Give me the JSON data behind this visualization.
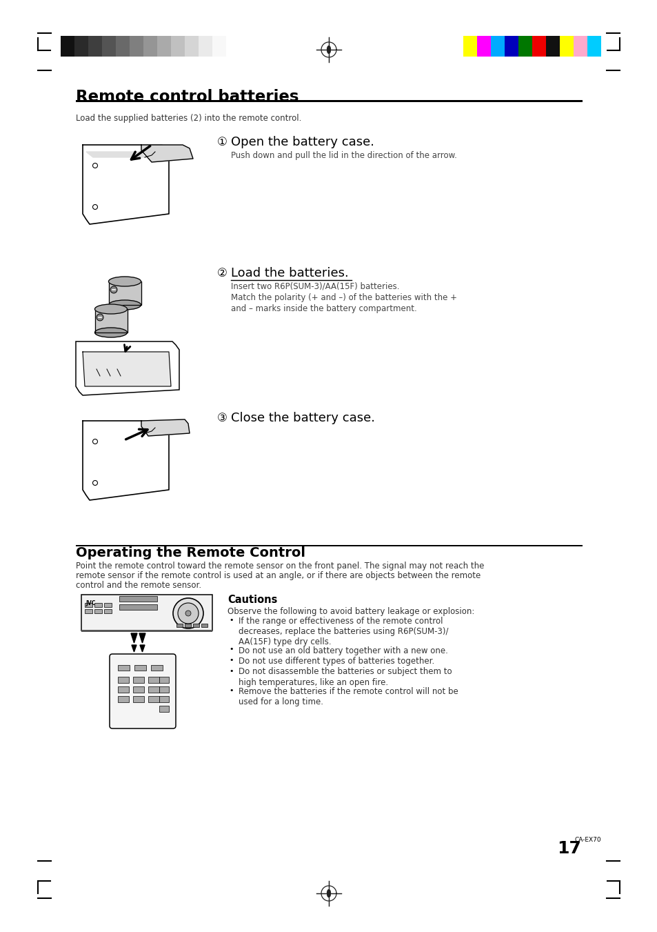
{
  "bg_color": "#ffffff",
  "page_width": 9.54,
  "page_height": 13.51,
  "dpi": 100,
  "top_bar_colors_left": [
    "#111111",
    "#2a2a2a",
    "#3e3e3e",
    "#545454",
    "#696969",
    "#7f7f7f",
    "#959595",
    "#aaaaaa",
    "#c0c0c0",
    "#d5d5d5",
    "#eaeaea",
    "#f8f8f8"
  ],
  "top_bar_colors_right": [
    "#ffff00",
    "#ff00ff",
    "#00aaff",
    "#0000bb",
    "#007700",
    "#ee0000",
    "#111111",
    "#ffff00",
    "#ffaacc",
    "#00ccff"
  ],
  "section1_title": "Remote control batteries",
  "section1_subtitle": "Load the supplied batteries (2) into the remote control.",
  "step1_num": "①",
  "step1_title": "Open the battery case.",
  "step1_desc": "Push down and pull the lid in the direction of the arrow.",
  "step2_num": "②",
  "step2_title": "Load the batteries.",
  "step2_desc1": "Insert two R6P(SUM-3)/AA(15F) batteries.",
  "step2_desc2": "Match the polarity (+ and –) of the batteries with the +",
  "step2_desc3": "and – marks inside the battery compartment.",
  "step3_num": "③",
  "step3_title": "Close the battery case.",
  "section2_title": "Operating the Remote Control",
  "section2_desc1": "Point the remote control toward the remote sensor on the front panel. The signal may not reach the",
  "section2_desc2": "remote sensor if the remote control is used at an angle, or if there are objects between the remote",
  "section2_desc3": "control and the remote sensor.",
  "cautions_title": "Cautions",
  "cautions_intro": "Observe the following to avoid battery leakage or explosion:",
  "cautions_bullets": [
    "If the range or effectiveness of the remote control\ndecreases, replace the batteries using R6P(SUM-3)/\nAA(15F) type dry cells.",
    "Do not use an old battery together with a new one.",
    "Do not use different types of batteries together.",
    "Do not disassemble the batteries or subject them to\nhigh temperatures, like an open fire.",
    "Remove the batteries if the remote control will not be\nused for a long time."
  ],
  "page_num": "17",
  "page_label": "CA-EX70"
}
